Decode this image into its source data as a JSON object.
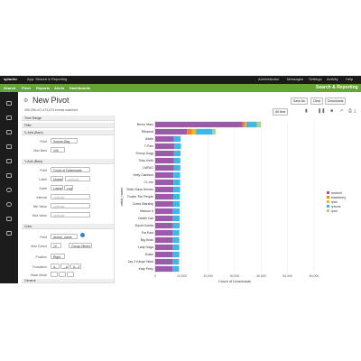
{
  "topbar": {
    "logo": "splunk>",
    "app_menu": "App: Search & Reporting",
    "admin_menu": "Administrator",
    "messages_menu": "Messages",
    "settings_menu": "Settings",
    "activity_menu": "Activity",
    "help_menu": "Help"
  },
  "navbar": {
    "items": [
      "Search",
      "Pivot",
      "Reports",
      "Alerts",
      "Dashboards"
    ],
    "app_title": "Search & Reporting"
  },
  "page": {
    "title": "New Pivot",
    "save_as": "Save As",
    "clear": "Clear",
    "dataset": "Downloads",
    "time_range": "All time",
    "table_count": "490,256 of 2,479,674 events matched"
  },
  "panel": {
    "sections": {
      "time_range": "Time Range",
      "filter": "Filter",
      "y_axis": "X-Axis (Bars)",
      "y_axis_bars": "Y-Axis (Bars)",
      "color": "Color",
      "general": "General"
    },
    "x_axis": {
      "field_label": "Field",
      "field_value": "Source-Bkg",
      "max_bars_label": "Max Bars",
      "max_bars_value": "100"
    },
    "y_axis": {
      "field_label": "Field",
      "field_value": "Count of Downloads",
      "label_label": "Label",
      "label_value": "shown",
      "label_placeholder": "optional",
      "scale_label": "Scale",
      "scale_linear": "Linear",
      "scale_log": "Log",
      "interval_label": "Interval",
      "interval_placeholder": "optional",
      "min_label": "Min Value",
      "min_placeholder": "optional",
      "max_label": "Max Value",
      "max_placeholder": "optional"
    },
    "color": {
      "field_label": "Field",
      "field_value": "device_name",
      "max_colors_label": "Max Colors",
      "max_colors_value": "10",
      "group_others": "Group Others",
      "position_label": "Position",
      "position_value": "Right",
      "truncation_label": "Truncation",
      "truncation_a": "A...",
      "truncation_b": "...A",
      "truncation_c": "A...Z",
      "stack_label": "Stack Mode"
    }
  },
  "chart_data": {
    "type": "bar",
    "orientation": "horizontal",
    "stacked": true,
    "ylabel": "artist_name",
    "xlabel": "Count of Downloads",
    "xlim": [
      0,
      60000
    ],
    "xticks": [
      "0",
      "10,000",
      "20,000",
      "30,000",
      "40,000",
      "50,000",
      "60,000"
    ],
    "categories": [
      "Bruno Mars",
      "Rihanna",
      "Adele",
      "T-Pain",
      "Snoop Dogg",
      "Toby Keith",
      "LMFAO",
      "Kelly Clarkson",
      "CL-me",
      "Sixth Class Heroes",
      "Foster The People",
      "Cobra Starship",
      "Maroon 5",
      "Death Cab",
      "David Guetta",
      "Far East",
      "Big Sean",
      "Lady Gaga",
      "Drake",
      "Jay Z Kanye West",
      "Katy Perry"
    ],
    "series": [
      {
        "name": "android",
        "color": "#9b5ba6",
        "values": [
          33000,
          12000,
          7000,
          7200,
          7100,
          7000,
          7000,
          6900,
          6900,
          6900,
          6800,
          6800,
          6700,
          6700,
          6700,
          6600,
          6600,
          6600,
          6600,
          6500,
          6500
        ]
      },
      {
        "name": "blackberry",
        "color": "#f58220",
        "values": [
          1000,
          1800,
          0,
          0,
          0,
          0,
          0,
          0,
          0,
          0,
          0,
          0,
          0,
          0,
          0,
          0,
          0,
          0,
          0,
          0,
          0
        ]
      },
      {
        "name": "ipad",
        "color": "#e8b83a",
        "values": [
          400,
          1600,
          0,
          0,
          0,
          0,
          0,
          0,
          0,
          0,
          0,
          0,
          0,
          0,
          0,
          0,
          0,
          0,
          0,
          0,
          0
        ]
      },
      {
        "name": "iphone",
        "color": "#3fb8e8",
        "values": [
          4000,
          6200,
          2600,
          2500,
          2500,
          2500,
          2500,
          2500,
          2500,
          2500,
          2500,
          2500,
          2500,
          2500,
          2500,
          2500,
          2500,
          2500,
          2500,
          2500,
          2500
        ]
      },
      {
        "name": "ipod",
        "color": "#a6d18e",
        "values": [
          1500,
          1200,
          0,
          0,
          0,
          0,
          0,
          0,
          0,
          0,
          0,
          0,
          0,
          0,
          0,
          0,
          0,
          0,
          0,
          0,
          0
        ]
      }
    ],
    "legend_position": "right"
  }
}
